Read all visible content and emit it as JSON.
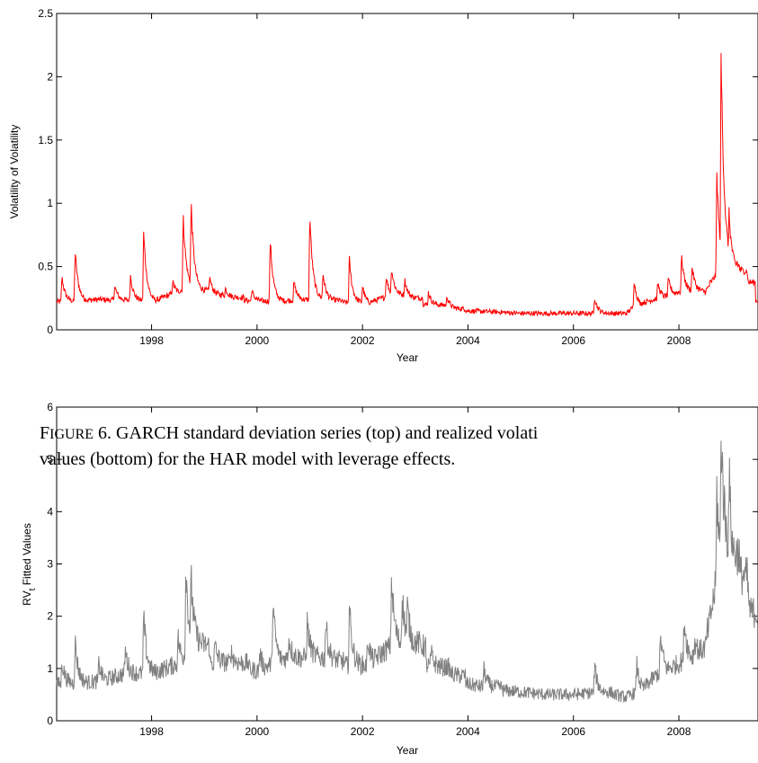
{
  "caption": {
    "lead_initial": "F",
    "lead_rest": "IGURE",
    "line1": " 6.  GARCH standard deviation series (top) and realized volati",
    "line2": "values (bottom) for the HAR model with leverage effects."
  },
  "colors": {
    "top_series": "#ff0000",
    "bottom_series": "#808080",
    "axis": "#000000"
  },
  "chart_data": [
    {
      "type": "line",
      "title": "",
      "xlabel": "Year",
      "ylabel": "Volatility of Volatility",
      "xlim": [
        1996.2,
        2009.5
      ],
      "ylim": [
        0,
        2.5
      ],
      "xticks": [
        "1998",
        "2000",
        "2002",
        "2004",
        "2006",
        "2008"
      ],
      "yticks": [
        "0",
        "0.5",
        "1",
        "1.5",
        "2",
        "2.5"
      ],
      "grid": false,
      "series": [
        {
          "color": "#ff0000",
          "baseline": [
            [
              1996.2,
              0.22
            ],
            [
              1997.0,
              0.24
            ],
            [
              1998.0,
              0.22
            ],
            [
              1998.6,
              0.32
            ],
            [
              1999.0,
              0.28
            ],
            [
              2000.0,
              0.22
            ],
            [
              2001.0,
              0.24
            ],
            [
              2001.6,
              0.22
            ],
            [
              2002.0,
              0.2
            ],
            [
              2002.6,
              0.28
            ],
            [
              2003.0,
              0.22
            ],
            [
              2003.5,
              0.17
            ],
            [
              2004.0,
              0.15
            ],
            [
              2004.6,
              0.14
            ],
            [
              2005.0,
              0.13
            ],
            [
              2006.0,
              0.13
            ],
            [
              2007.0,
              0.13
            ],
            [
              2007.2,
              0.2
            ],
            [
              2007.6,
              0.25
            ],
            [
              2008.0,
              0.3
            ],
            [
              2008.5,
              0.3
            ],
            [
              2008.8,
              0.5
            ],
            [
              2009.0,
              0.45
            ],
            [
              2009.3,
              0.22
            ],
            [
              2009.5,
              0.2
            ]
          ],
          "spikes": [
            [
              1996.3,
              0.42
            ],
            [
              1996.55,
              0.63
            ],
            [
              1997.3,
              0.35
            ],
            [
              1997.6,
              0.43
            ],
            [
              1997.85,
              0.78
            ],
            [
              1998.4,
              0.38
            ],
            [
              1998.6,
              0.9
            ],
            [
              1998.75,
              1.01
            ],
            [
              1999.1,
              0.42
            ],
            [
              1999.4,
              0.33
            ],
            [
              1999.9,
              0.31
            ],
            [
              2000.25,
              0.71
            ],
            [
              2000.7,
              0.38
            ],
            [
              2001.0,
              0.91
            ],
            [
              2001.25,
              0.45
            ],
            [
              2001.75,
              0.56
            ],
            [
              2002.0,
              0.35
            ],
            [
              2002.45,
              0.42
            ],
            [
              2002.55,
              0.49
            ],
            [
              2002.8,
              0.4
            ],
            [
              2003.25,
              0.3
            ],
            [
              2003.6,
              0.27
            ],
            [
              2006.4,
              0.26
            ],
            [
              2007.15,
              0.39
            ],
            [
              2007.6,
              0.37
            ],
            [
              2007.8,
              0.4
            ],
            [
              2008.05,
              0.58
            ],
            [
              2008.25,
              0.5
            ],
            [
              2008.6,
              0.37
            ],
            [
              2008.72,
              1.23
            ],
            [
              2008.8,
              2.19
            ],
            [
              2008.95,
              0.93
            ],
            [
              2009.1,
              0.55
            ],
            [
              2009.3,
              0.41
            ]
          ],
          "noise": 0.03
        }
      ]
    },
    {
      "type": "line",
      "title": "",
      "xlabel": "Year",
      "ylabel": "RV_t Fitted Values",
      "xlim": [
        1996.2,
        2009.5
      ],
      "ylim": [
        0,
        6
      ],
      "xticks": [
        "1998",
        "2000",
        "2002",
        "2004",
        "2006",
        "2008"
      ],
      "yticks": [
        "0",
        "1",
        "2",
        "3",
        "4",
        "5",
        "6"
      ],
      "grid": false,
      "series": [
        {
          "color": "#808080",
          "baseline": [
            [
              1996.2,
              0.7
            ],
            [
              1997.0,
              0.75
            ],
            [
              1997.5,
              0.9
            ],
            [
              1998.0,
              0.9
            ],
            [
              1998.5,
              1.1
            ],
            [
              1998.8,
              1.5
            ],
            [
              1999.0,
              1.1
            ],
            [
              1999.5,
              1.1
            ],
            [
              2000.0,
              0.95
            ],
            [
              2000.5,
              1.2
            ],
            [
              2001.0,
              1.2
            ],
            [
              2001.5,
              1.1
            ],
            [
              2002.0,
              1.0
            ],
            [
              2002.5,
              1.4
            ],
            [
              2002.8,
              1.5
            ],
            [
              2003.0,
              1.2
            ],
            [
              2003.5,
              0.9
            ],
            [
              2004.0,
              0.7
            ],
            [
              2004.5,
              0.6
            ],
            [
              2005.0,
              0.55
            ],
            [
              2005.5,
              0.5
            ],
            [
              2006.0,
              0.5
            ],
            [
              2006.5,
              0.55
            ],
            [
              2007.0,
              0.45
            ],
            [
              2007.3,
              0.6
            ],
            [
              2007.6,
              0.9
            ],
            [
              2008.0,
              1.1
            ],
            [
              2008.5,
              1.4
            ],
            [
              2008.8,
              3.2
            ],
            [
              2009.0,
              2.6
            ],
            [
              2009.2,
              1.9
            ],
            [
              2009.5,
              1.1
            ]
          ],
          "spikes": [
            [
              1996.3,
              1.15
            ],
            [
              1996.55,
              1.53
            ],
            [
              1997.0,
              1.1
            ],
            [
              1997.5,
              1.35
            ],
            [
              1997.85,
              2.0
            ],
            [
              1998.5,
              1.6
            ],
            [
              1998.65,
              3.0
            ],
            [
              1998.75,
              2.72
            ],
            [
              1999.2,
              1.45
            ],
            [
              1999.5,
              1.35
            ],
            [
              2000.05,
              1.3
            ],
            [
              2000.3,
              2.28
            ],
            [
              2000.6,
              1.6
            ],
            [
              2000.95,
              1.9
            ],
            [
              2001.3,
              1.9
            ],
            [
              2001.75,
              2.18
            ],
            [
              2002.1,
              1.6
            ],
            [
              2002.55,
              2.73
            ],
            [
              2002.75,
              2.42
            ],
            [
              2002.85,
              2.2
            ],
            [
              2003.3,
              1.3
            ],
            [
              2003.6,
              1.05
            ],
            [
              2004.3,
              1.0
            ],
            [
              2006.4,
              1.05
            ],
            [
              2007.2,
              1.1
            ],
            [
              2007.65,
              1.62
            ],
            [
              2008.1,
              1.95
            ],
            [
              2008.3,
              1.55
            ],
            [
              2008.55,
              1.72
            ],
            [
              2008.72,
              4.4
            ],
            [
              2008.8,
              5.65
            ],
            [
              2008.95,
              4.75
            ],
            [
              2009.15,
              2.2
            ],
            [
              2009.3,
              2.65
            ]
          ],
          "noise": 0.12
        }
      ]
    }
  ]
}
